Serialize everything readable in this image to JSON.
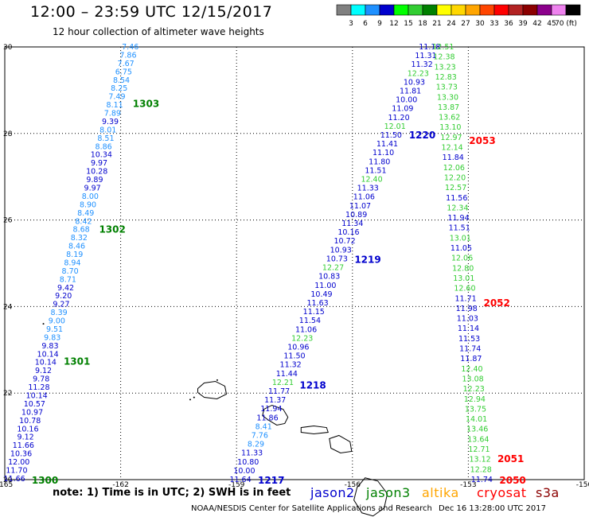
{
  "header": {
    "title": "12:00 – 23:59 UTC 12/15/2017",
    "subtitle": "12 hour collection of altimeter wave heights"
  },
  "colorbar": {
    "labels": [
      "3",
      "6",
      "9",
      "12",
      "15",
      "18",
      "21",
      "24",
      "27",
      "30",
      "33",
      "36",
      "39",
      "42",
      "45",
      "70 (ft)"
    ],
    "colors": [
      "#808080",
      "#00ffff",
      "#1e90ff",
      "#0000cd",
      "#00ff00",
      "#32cd32",
      "#008000",
      "#ffff00",
      "#ffd700",
      "#ffa500",
      "#ff4500",
      "#ff0000",
      "#b22222",
      "#8b0000",
      "#8b008b",
      "#ee82ee",
      "#000000"
    ]
  },
  "axes": {
    "lon_labels": [
      "-165",
      "-162",
      "-159",
      "-156",
      "-153",
      "-150"
    ],
    "lat_labels": [
      "20",
      "22",
      "24",
      "26",
      "28",
      "30"
    ]
  },
  "tracks": [
    {
      "start": [
        -164.75,
        20.02
      ],
      "end": [
        -161.75,
        30.0
      ],
      "passes": [
        {
          "label": "1300",
          "color": "#008000",
          "lat": 20.0
        },
        {
          "label": "1301",
          "color": "#008000",
          "lat": 22.75
        },
        {
          "label": "1302",
          "color": "#008000",
          "lat": 25.8
        },
        {
          "label": "1303",
          "color": "#008000",
          "lat": 28.7
        }
      ],
      "points": [
        {
          "v": "11.66",
          "c": "#0000cd"
        },
        {
          "v": "11.70",
          "c": "#0000cd"
        },
        {
          "v": "12.00",
          "c": "#0000cd"
        },
        {
          "v": "10.36",
          "c": "#0000cd"
        },
        {
          "v": "11.66",
          "c": "#0000cd"
        },
        {
          "v": "9.12",
          "c": "#0000cd"
        },
        {
          "v": "10.16",
          "c": "#0000cd"
        },
        {
          "v": "10.78",
          "c": "#0000cd"
        },
        {
          "v": "10.97",
          "c": "#0000cd"
        },
        {
          "v": "10.57",
          "c": "#0000cd"
        },
        {
          "v": "10.14",
          "c": "#0000cd"
        },
        {
          "v": "11.28",
          "c": "#0000cd"
        },
        {
          "v": "9.78",
          "c": "#0000cd"
        },
        {
          "v": "9.12",
          "c": "#0000cd"
        },
        {
          "v": "10.14",
          "c": "#0000cd"
        },
        {
          "v": "10.14",
          "c": "#0000cd"
        },
        {
          "v": "9.83",
          "c": "#0000cd"
        },
        {
          "v": "9.83",
          "c": "#1e90ff"
        },
        {
          "v": "9.51",
          "c": "#1e90ff"
        },
        {
          "v": "9.00",
          "c": "#1e90ff"
        },
        {
          "v": "8.39",
          "c": "#1e90ff"
        },
        {
          "v": "9.27",
          "c": "#0000cd"
        },
        {
          "v": "9.20",
          "c": "#0000cd"
        },
        {
          "v": "9.42",
          "c": "#0000cd"
        },
        {
          "v": "8.71",
          "c": "#1e90ff"
        },
        {
          "v": "8.70",
          "c": "#1e90ff"
        },
        {
          "v": "8.94",
          "c": "#1e90ff"
        },
        {
          "v": "8.19",
          "c": "#1e90ff"
        },
        {
          "v": "8.46",
          "c": "#1e90ff"
        },
        {
          "v": "8.32",
          "c": "#1e90ff"
        },
        {
          "v": "8.68",
          "c": "#1e90ff"
        },
        {
          "v": "8.42",
          "c": "#1e90ff"
        },
        {
          "v": "8.49",
          "c": "#1e90ff"
        },
        {
          "v": "8.90",
          "c": "#1e90ff"
        },
        {
          "v": "8.00",
          "c": "#1e90ff"
        },
        {
          "v": "9.97",
          "c": "#0000cd"
        },
        {
          "v": "9.89",
          "c": "#0000cd"
        },
        {
          "v": "10.28",
          "c": "#0000cd"
        },
        {
          "v": "9.97",
          "c": "#0000cd"
        },
        {
          "v": "10.34",
          "c": "#0000cd"
        },
        {
          "v": "8.86",
          "c": "#1e90ff"
        },
        {
          "v": "8.51",
          "c": "#1e90ff"
        },
        {
          "v": "8.01",
          "c": "#1e90ff"
        },
        {
          "v": "9.39",
          "c": "#0000cd"
        },
        {
          "v": "7.89",
          "c": "#1e90ff"
        },
        {
          "v": "8.11",
          "c": "#1e90ff"
        },
        {
          "v": "7.49",
          "c": "#1e90ff"
        },
        {
          "v": "8.25",
          "c": "#1e90ff"
        },
        {
          "v": "8.54",
          "c": "#1e90ff"
        },
        {
          "v": "6.75",
          "c": "#1e90ff"
        },
        {
          "v": "7.67",
          "c": "#1e90ff"
        },
        {
          "v": "7.86",
          "c": "#1e90ff"
        },
        {
          "v": "7.46",
          "c": "#1e90ff"
        }
      ]
    },
    {
      "start": [
        -158.9,
        20.0
      ],
      "end": [
        -154.0,
        30.0
      ],
      "passes": [
        {
          "label": "1217",
          "color": "#0000cd",
          "lat": 20.0
        },
        {
          "label": "1218",
          "color": "#0000cd",
          "lat": 22.2
        },
        {
          "label": "1219",
          "color": "#0000cd",
          "lat": 25.1
        },
        {
          "label": "1220",
          "color": "#0000cd",
          "lat": 27.98
        }
      ],
      "points": [
        {
          "v": "11.64",
          "c": "#0000cd"
        },
        {
          "v": "10.00",
          "c": "#0000cd"
        },
        {
          "v": "10.80",
          "c": "#0000cd"
        },
        {
          "v": "11.33",
          "c": "#0000cd"
        },
        {
          "v": "8.29",
          "c": "#1e90ff"
        },
        {
          "v": "7.76",
          "c": "#1e90ff"
        },
        {
          "v": "8.41",
          "c": "#1e90ff"
        },
        {
          "v": "11.86",
          "c": "#0000cd"
        },
        {
          "v": "11.94",
          "c": "#0000cd"
        },
        {
          "v": "11.37",
          "c": "#0000cd"
        },
        {
          "v": "11.77",
          "c": "#0000cd"
        },
        {
          "v": "12.21",
          "c": "#32cd32"
        },
        {
          "v": "11.44",
          "c": "#0000cd"
        },
        {
          "v": "11.32",
          "c": "#0000cd"
        },
        {
          "v": "11.50",
          "c": "#0000cd"
        },
        {
          "v": "10.96",
          "c": "#0000cd"
        },
        {
          "v": "12.23",
          "c": "#32cd32"
        },
        {
          "v": "11.06",
          "c": "#0000cd"
        },
        {
          "v": "11.54",
          "c": "#0000cd"
        },
        {
          "v": "11.15",
          "c": "#0000cd"
        },
        {
          "v": "11.63",
          "c": "#0000cd"
        },
        {
          "v": "10.49",
          "c": "#0000cd"
        },
        {
          "v": "11.00",
          "c": "#0000cd"
        },
        {
          "v": "10.83",
          "c": "#0000cd"
        },
        {
          "v": "12.27",
          "c": "#32cd32"
        },
        {
          "v": "10.73",
          "c": "#0000cd"
        },
        {
          "v": "10.93",
          "c": "#0000cd"
        },
        {
          "v": "10.72",
          "c": "#0000cd"
        },
        {
          "v": "10.16",
          "c": "#0000cd"
        },
        {
          "v": "11.34",
          "c": "#0000cd"
        },
        {
          "v": "10.89",
          "c": "#0000cd"
        },
        {
          "v": "11.07",
          "c": "#0000cd"
        },
        {
          "v": "11.06",
          "c": "#0000cd"
        },
        {
          "v": "11.33",
          "c": "#0000cd"
        },
        {
          "v": "12.40",
          "c": "#32cd32"
        },
        {
          "v": "11.51",
          "c": "#0000cd"
        },
        {
          "v": "11.80",
          "c": "#0000cd"
        },
        {
          "v": "11.10",
          "c": "#0000cd"
        },
        {
          "v": "11.41",
          "c": "#0000cd"
        },
        {
          "v": "11.50",
          "c": "#0000cd"
        },
        {
          "v": "12.01",
          "c": "#32cd32"
        },
        {
          "v": "11.20",
          "c": "#0000cd"
        },
        {
          "v": "11.09",
          "c": "#0000cd"
        },
        {
          "v": "10.00",
          "c": "#0000cd"
        },
        {
          "v": "11.81",
          "c": "#0000cd"
        },
        {
          "v": "10.93",
          "c": "#0000cd"
        },
        {
          "v": "12.23",
          "c": "#32cd32"
        },
        {
          "v": "11.32",
          "c": "#0000cd"
        },
        {
          "v": "11.31",
          "c": "#0000cd"
        },
        {
          "v": "11.18",
          "c": "#0000cd"
        }
      ]
    },
    {
      "start": [
        -152.65,
        20.0
      ],
      "end": [
        -153.65,
        30.0
      ],
      "passes": [
        {
          "label": "2050",
          "color": "#ff0000",
          "lat": 20.0
        },
        {
          "label": "2051",
          "color": "#ff0000",
          "lat": 20.5
        },
        {
          "label": "2052",
          "color": "#ff0000",
          "lat": 24.1
        },
        {
          "label": "2053",
          "color": "#ff0000",
          "lat": 27.85
        }
      ],
      "points": [
        {
          "v": "11.74",
          "c": "#0000cd"
        },
        {
          "v": "12.28",
          "c": "#32cd32"
        },
        {
          "v": "13.12",
          "c": "#32cd32"
        },
        {
          "v": "12.71",
          "c": "#32cd32"
        },
        {
          "v": "13.64",
          "c": "#32cd32"
        },
        {
          "v": "13.46",
          "c": "#32cd32"
        },
        {
          "v": "14.01",
          "c": "#32cd32"
        },
        {
          "v": "13.75",
          "c": "#32cd32"
        },
        {
          "v": "12.94",
          "c": "#32cd32"
        },
        {
          "v": "12.23",
          "c": "#32cd32"
        },
        {
          "v": "13.08",
          "c": "#32cd32"
        },
        {
          "v": "12.40",
          "c": "#32cd32"
        },
        {
          "v": "11.87",
          "c": "#0000cd"
        },
        {
          "v": "11.74",
          "c": "#0000cd"
        },
        {
          "v": "11.53",
          "c": "#0000cd"
        },
        {
          "v": "11.14",
          "c": "#0000cd"
        },
        {
          "v": "11.03",
          "c": "#0000cd"
        },
        {
          "v": "11.98",
          "c": "#0000cd"
        },
        {
          "v": "11.71",
          "c": "#0000cd"
        },
        {
          "v": "12.60",
          "c": "#32cd32"
        },
        {
          "v": "13.01",
          "c": "#32cd32"
        },
        {
          "v": "12.80",
          "c": "#32cd32"
        },
        {
          "v": "12.06",
          "c": "#32cd32"
        },
        {
          "v": "11.05",
          "c": "#0000cd"
        },
        {
          "v": "13.01",
          "c": "#32cd32"
        },
        {
          "v": "11.51",
          "c": "#0000cd"
        },
        {
          "v": "11.94",
          "c": "#0000cd"
        },
        {
          "v": "12.34",
          "c": "#32cd32"
        },
        {
          "v": "11.56",
          "c": "#0000cd"
        },
        {
          "v": "12.57",
          "c": "#32cd32"
        },
        {
          "v": "12.20",
          "c": "#32cd32"
        },
        {
          "v": "12.06",
          "c": "#32cd32"
        },
        {
          "v": "11.84",
          "c": "#0000cd"
        },
        {
          "v": "12.14",
          "c": "#32cd32"
        },
        {
          "v": "12.97",
          "c": "#32cd32"
        },
        {
          "v": "13.10",
          "c": "#32cd32"
        },
        {
          "v": "13.62",
          "c": "#32cd32"
        },
        {
          "v": "13.87",
          "c": "#32cd32"
        },
        {
          "v": "13.30",
          "c": "#32cd32"
        },
        {
          "v": "13.73",
          "c": "#32cd32"
        },
        {
          "v": "12.83",
          "c": "#32cd32"
        },
        {
          "v": "13.23",
          "c": "#32cd32"
        },
        {
          "v": "12.38",
          "c": "#32cd32"
        },
        {
          "v": "12.51",
          "c": "#32cd32"
        }
      ]
    }
  ],
  "islands": [
    {
      "name": "kauai",
      "center": [
        -159.55,
        22.05
      ]
    },
    {
      "name": "oahu",
      "center": [
        -158.0,
        21.48
      ]
    },
    {
      "name": "molokai",
      "center": [
        -157.0,
        21.13
      ]
    },
    {
      "name": "maui",
      "center": [
        -156.35,
        20.8
      ]
    },
    {
      "name": "big-island",
      "center": [
        -155.55,
        19.6
      ]
    }
  ],
  "footer": {
    "note": "note: 1) Time is in UTC; 2) SWH is in feet",
    "satellites": [
      {
        "name": "jason2",
        "color": "#0000cd"
      },
      {
        "name": "jason3",
        "color": "#008000"
      },
      {
        "name": "altika",
        "color": "#ffa500"
      },
      {
        "name": "cryosat",
        "color": "#ff0000"
      },
      {
        "name": "s3a",
        "color": "#8b0000"
      }
    ],
    "credit": "NOAA/NESDIS Center for Satellite Applications and Research",
    "issued": "Dec 16 13:28:00 UTC 2017"
  }
}
